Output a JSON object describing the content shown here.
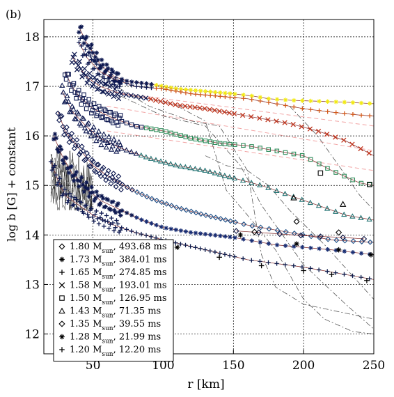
{
  "chart_data": {
    "type": "line",
    "panel_label": "(b)",
    "xlabel": "r [km]",
    "ylabel": "log b [G] + constant",
    "xlim": [
      15,
      250
    ],
    "ylim": [
      11.6,
      18.35
    ],
    "x_ticks": [
      50,
      100,
      150,
      200,
      250
    ],
    "y_ticks": [
      12,
      13,
      14,
      15,
      16,
      17,
      18
    ],
    "grid": "dashed",
    "legend_position": "bottom-left",
    "legend": [
      {
        "label": "1.80 M",
        "sub": "sun",
        "tail": ", 493.68 ms",
        "marker": "diamond"
      },
      {
        "label": "1.73 M",
        "sub": "sun",
        "tail": ", 384.01 ms",
        "marker": "star"
      },
      {
        "label": "1.65 M",
        "sub": "sun",
        "tail": ", 274.85 ms",
        "marker": "plus"
      },
      {
        "label": "1.58 M",
        "sub": "sun",
        "tail": ", 193.01 ms",
        "marker": "x"
      },
      {
        "label": "1.50 M",
        "sub": "sun",
        "tail": ", 126.95 ms",
        "marker": "square"
      },
      {
        "label": "1.43 M",
        "sub": "sun",
        "tail": ", 71.35 ms",
        "marker": "triangle"
      },
      {
        "label": "1.35 M",
        "sub": "sun",
        "tail": ", 39.55 ms",
        "marker": "diamond"
      },
      {
        "label": "1.28 M",
        "sub": "sun",
        "tail": ", 21.99 ms",
        "marker": "star"
      },
      {
        "label": "1.20 M",
        "sub": "sun",
        "tail": ", 12.20 ms",
        "marker": "plus"
      }
    ],
    "series": [
      {
        "color": "#f2ea14",
        "marker": "star",
        "dense": true,
        "x": [
          40,
          45,
          55,
          65,
          75,
          90,
          110,
          130,
          150,
          165,
          175,
          190,
          210,
          230,
          250
        ],
        "y": [
          18.2,
          17.9,
          17.45,
          17.2,
          17.1,
          17.05,
          16.95,
          16.9,
          16.85,
          16.8,
          16.75,
          16.72,
          16.7,
          16.68,
          16.65
        ]
      },
      {
        "color": "#d25a1c",
        "marker": "plus",
        "dense": true,
        "x": [
          40,
          45,
          55,
          65,
          80,
          100,
          120,
          140,
          160,
          180,
          200,
          220,
          240,
          250
        ],
        "y": [
          17.9,
          17.6,
          17.3,
          17.15,
          17.0,
          16.95,
          16.85,
          16.8,
          16.75,
          16.65,
          16.55,
          16.48,
          16.42,
          16.4
        ]
      },
      {
        "color": "#c0341c",
        "marker": "x",
        "dense": true,
        "x": [
          35,
          40,
          45,
          55,
          70,
          90,
          110,
          130,
          150,
          170,
          190,
          210,
          230,
          250
        ],
        "y": [
          17.6,
          17.4,
          17.2,
          17.0,
          16.85,
          16.75,
          16.62,
          16.55,
          16.45,
          16.35,
          16.25,
          16.1,
          15.9,
          15.6
        ]
      },
      {
        "color": "#2e8c5a",
        "marker": "square",
        "dense": true,
        "x": [
          30,
          35,
          40,
          50,
          65,
          80,
          100,
          120,
          140,
          160,
          180,
          200,
          220,
          240,
          250
        ],
        "y": [
          17.3,
          17.0,
          16.8,
          16.55,
          16.35,
          16.2,
          16.1,
          15.95,
          15.85,
          15.8,
          15.7,
          15.6,
          15.3,
          15.05,
          15.0
        ]
      },
      {
        "color": "#1e7070",
        "marker": "triangle",
        "dense": true,
        "x": [
          28,
          35,
          45,
          55,
          70,
          90,
          110,
          130,
          150,
          170,
          190,
          210,
          230,
          250
        ],
        "y": [
          16.9,
          16.5,
          16.2,
          15.95,
          15.75,
          15.55,
          15.4,
          15.3,
          15.15,
          15.0,
          14.8,
          14.6,
          14.4,
          14.3
        ]
      },
      {
        "color": "#1c4e86",
        "marker": "diamond",
        "dense": true,
        "x": [
          25,
          30,
          40,
          50,
          60,
          75,
          90,
          110,
          130,
          160,
          190,
          220,
          250
        ],
        "y": [
          16.5,
          16.1,
          15.75,
          15.4,
          15.2,
          14.95,
          14.75,
          14.55,
          14.4,
          14.2,
          14.05,
          13.9,
          13.85
        ]
      },
      {
        "color": "#182d73",
        "marker": "star",
        "dense": true,
        "x": [
          22,
          28,
          35,
          45,
          55,
          70,
          85,
          100,
          120,
          150,
          180,
          220,
          250
        ],
        "y": [
          16.0,
          15.6,
          15.25,
          14.95,
          14.7,
          14.5,
          14.3,
          14.15,
          14.05,
          13.95,
          13.8,
          13.7,
          13.6
        ]
      },
      {
        "color": "#0c1a4a",
        "marker": "plus",
        "dense": true,
        "x": [
          20,
          25,
          30,
          40,
          50,
          65,
          80,
          100,
          130,
          160,
          200,
          230,
          250
        ],
        "y": [
          15.5,
          15.1,
          14.8,
          14.6,
          14.4,
          14.2,
          14.05,
          13.9,
          13.7,
          13.5,
          13.35,
          13.2,
          13.1
        ]
      },
      {
        "color": "#0b1240",
        "marker": "diamond",
        "dense": false,
        "x": [
          152,
          168,
          183,
          198,
          212,
          228,
          243
        ],
        "y": [
          14.08,
          14.05,
          14.02,
          13.99,
          13.97,
          13.95,
          13.92
        ]
      }
    ],
    "sparse_markers": [
      {
        "marker": "star",
        "x": [
          110,
          155,
          195,
          225,
          248
        ],
        "y": [
          13.75,
          14.0,
          13.82,
          13.7,
          13.6
        ]
      },
      {
        "marker": "plus",
        "x": [
          140,
          170,
          200,
          220,
          245
        ],
        "y": [
          13.55,
          13.38,
          13.28,
          13.2,
          13.08
        ]
      },
      {
        "marker": "diamond",
        "x": [
          165,
          195,
          225
        ],
        "y": [
          14.06,
          14.27,
          14.05
        ]
      },
      {
        "marker": "triangle",
        "x": [
          193,
          228
        ],
        "y": [
          14.75,
          14.62
        ]
      },
      {
        "marker": "square",
        "x": [
          212,
          247
        ],
        "y": [
          15.25,
          15.02
        ]
      }
    ],
    "thin_curves": [
      {
        "style": "dash-dot",
        "x": [
          55,
          90,
          120,
          140,
          160,
          170,
          180,
          200,
          250
        ],
        "y": [
          17.2,
          16.6,
          16.3,
          16.2,
          15.3,
          13.6,
          12.95,
          12.6,
          12.3
        ]
      },
      {
        "style": "dash-dot",
        "x": [
          70,
          100,
          130,
          155,
          170,
          185,
          200,
          230,
          250
        ],
        "y": [
          16.8,
          16.4,
          16.2,
          15.4,
          14.6,
          14.0,
          13.4,
          12.6,
          12.1
        ]
      },
      {
        "style": "dash-dot",
        "x": [
          110,
          130,
          145,
          160,
          180,
          200,
          215,
          235,
          250
        ],
        "y": [
          16.6,
          16.3,
          14.9,
          14.4,
          13.7,
          12.7,
          12.3,
          12.05,
          12.0
        ]
      },
      {
        "style": "dash-dot",
        "x": [
          190,
          210,
          225,
          240,
          250
        ],
        "y": [
          16.6,
          16.0,
          15.4,
          14.8,
          14.5
        ]
      },
      {
        "style": "dash-dot",
        "x": [
          130,
          145,
          160,
          175,
          190,
          215,
          250
        ],
        "y": [
          15.6,
          15.4,
          15.3,
          15.0,
          14.5,
          13.8,
          12.7
        ]
      }
    ],
    "pink_guides": [
      {
        "x": [
          60,
          250
        ],
        "y": [
          16.9,
          16.2
        ]
      },
      {
        "x": [
          60,
          250
        ],
        "y": [
          16.6,
          15.7
        ]
      },
      {
        "x": [
          60,
          250
        ],
        "y": [
          16.1,
          15.3
        ]
      }
    ],
    "noise_region": {
      "x_start": 20,
      "x_end": 50,
      "y_top": 15.6,
      "y_bottom": 14.5
    }
  }
}
